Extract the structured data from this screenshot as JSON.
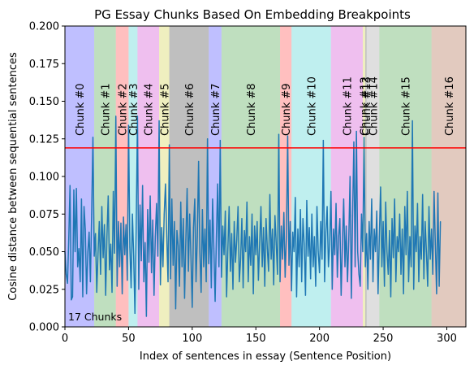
{
  "chart_data": {
    "type": "line",
    "title": "PG Essay Chunks Based On Embedding Breakpoints",
    "xlabel": "Index of sentences in essay (Sentence Position)",
    "ylabel": "Cosine distance between sequential sentences",
    "xlim": [
      0,
      315
    ],
    "ylim": [
      0.0,
      0.2
    ],
    "xticks": [
      "0",
      "50",
      "100",
      "150",
      "200",
      "250",
      "300"
    ],
    "xtick_values": [
      0,
      50,
      100,
      150,
      200,
      250,
      300
    ],
    "yticks": [
      "0.000",
      "0.025",
      "0.050",
      "0.075",
      "0.100",
      "0.125",
      "0.150",
      "0.175",
      "0.200"
    ],
    "ytick_values": [
      0.0,
      0.025,
      0.05,
      0.075,
      0.1,
      0.125,
      0.15,
      0.175,
      0.2
    ],
    "grid": false,
    "threshold": 0.119,
    "threshold_color": "#ff0000",
    "line_color": "#1f77b4",
    "annotation": "17 Chunks",
    "chunks": [
      {
        "label": "Chunk #0",
        "start": 0,
        "end": 23,
        "color": "#0000ff"
      },
      {
        "label": "Chunk #1",
        "start": 23,
        "end": 40,
        "color": "#008000"
      },
      {
        "label": "Chunk #2",
        "start": 40,
        "end": 50,
        "color": "#ff0000"
      },
      {
        "label": "Chunk #3",
        "start": 50,
        "end": 57,
        "color": "#00bfbf"
      },
      {
        "label": "Chunk #4",
        "start": 57,
        "end": 74,
        "color": "#bf00bf"
      },
      {
        "label": "Chunk #5",
        "start": 74,
        "end": 82,
        "color": "#bfbf00"
      },
      {
        "label": "Chunk #6",
        "start": 82,
        "end": 113,
        "color": "#000000"
      },
      {
        "label": "Chunk #7",
        "start": 113,
        "end": 123,
        "color": "#0000ff"
      },
      {
        "label": "Chunk #8",
        "start": 123,
        "end": 169,
        "color": "#008000"
      },
      {
        "label": "Chunk #9",
        "start": 169,
        "end": 178,
        "color": "#ff0000"
      },
      {
        "label": "Chunk #10",
        "start": 178,
        "end": 209,
        "color": "#00bfbf"
      },
      {
        "label": "Chunk #11",
        "start": 209,
        "end": 234,
        "color": "#bf00bf"
      },
      {
        "label": "Chunk #12",
        "start": 234,
        "end": 236,
        "color": "#bfbf00"
      },
      {
        "label": "Chunk #13",
        "start": 236,
        "end": 237,
        "color": "#000000"
      },
      {
        "label": "Chunk #14",
        "start": 237,
        "end": 247,
        "color": "#808080"
      },
      {
        "label": "Chunk #15",
        "start": 247,
        "end": 288,
        "color": "#008000"
      },
      {
        "label": "Chunk #16",
        "start": 288,
        "end": 315,
        "color": "#8b2a00"
      }
    ],
    "series": [
      {
        "values": [
          0.05,
          0.035,
          0.029,
          0.058,
          0.094,
          0.018,
          0.02,
          0.091,
          0.05,
          0.092,
          0.04,
          0.052,
          0.03,
          0.085,
          0.02,
          0.08,
          0.065,
          0.022,
          0.05,
          0.063,
          0.03,
          0.075,
          0.126,
          0.047,
          0.062,
          0.023,
          0.049,
          0.07,
          0.035,
          0.08,
          0.046,
          0.068,
          0.021,
          0.06,
          0.087,
          0.038,
          0.055,
          0.023,
          0.09,
          0.049,
          0.14,
          0.027,
          0.07,
          0.04,
          0.069,
          0.022,
          0.073,
          0.048,
          0.068,
          0.031,
          0.134,
          0.053,
          0.026,
          0.075,
          0.047,
          0.009,
          0.066,
          0.14,
          0.025,
          0.081,
          0.044,
          0.094,
          0.03,
          0.056,
          0.007,
          0.078,
          0.043,
          0.087,
          0.036,
          0.071,
          0.021,
          0.06,
          0.082,
          0.047,
          0.137,
          0.028,
          0.066,
          0.04,
          0.075,
          0.095,
          0.06,
          0.03,
          0.121,
          0.032,
          0.085,
          0.041,
          0.07,
          0.012,
          0.064,
          0.054,
          0.027,
          0.083,
          0.04,
          0.072,
          0.019,
          0.058,
          0.092,
          0.037,
          0.075,
          0.047,
          0.013,
          0.066,
          0.085,
          0.03,
          0.06,
          0.11,
          0.05,
          0.023,
          0.078,
          0.04,
          0.065,
          0.03,
          0.125,
          0.042,
          0.071,
          0.026,
          0.085,
          0.052,
          0.017,
          0.06,
          0.095,
          0.04,
          0.124,
          0.033,
          0.067,
          0.048,
          0.077,
          0.02,
          0.052,
          0.08,
          0.037,
          0.062,
          0.025,
          0.07,
          0.043,
          0.058,
          0.08,
          0.03,
          0.045,
          0.072,
          0.026,
          0.064,
          0.05,
          0.083,
          0.03,
          0.06,
          0.041,
          0.075,
          0.022,
          0.067,
          0.048,
          0.07,
          0.031,
          0.056,
          0.08,
          0.04,
          0.066,
          0.027,
          0.072,
          0.052,
          0.037,
          0.088,
          0.045,
          0.065,
          0.028,
          0.074,
          0.055,
          0.035,
          0.128,
          0.03,
          0.067,
          0.045,
          0.076,
          0.033,
          0.06,
          0.127,
          0.041,
          0.07,
          0.024,
          0.063,
          0.05,
          0.086,
          0.02,
          0.065,
          0.04,
          0.078,
          0.03,
          0.072,
          0.055,
          0.021,
          0.084,
          0.047,
          0.066,
          0.032,
          0.075,
          0.04,
          0.06,
          0.027,
          0.08,
          0.05,
          0.036,
          0.07,
          0.045,
          0.124,
          0.03,
          0.063,
          0.08,
          0.04,
          0.055,
          0.09,
          0.025,
          0.065,
          0.048,
          0.082,
          0.033,
          0.06,
          0.072,
          0.021,
          0.055,
          0.085,
          0.04,
          0.067,
          0.03,
          0.058,
          0.1,
          0.019,
          0.074,
          0.123,
          0.04,
          0.13,
          0.05,
          0.035,
          0.027,
          0.075,
          0.05,
          0.126,
          0.04,
          0.062,
          0.025,
          0.07,
          0.045,
          0.085,
          0.03,
          0.065,
          0.05,
          0.077,
          0.022,
          0.06,
          0.093,
          0.04,
          0.07,
          0.027,
          0.083,
          0.05,
          0.035,
          0.064,
          0.02,
          0.072,
          0.046,
          0.085,
          0.03,
          0.06,
          0.05,
          0.075,
          0.035,
          0.065,
          0.022,
          0.08,
          0.048,
          0.09,
          0.03,
          0.06,
          0.04,
          0.137,
          0.025,
          0.067,
          0.05,
          0.082,
          0.03,
          0.06,
          0.045,
          0.088,
          0.032,
          0.07,
          0.05,
          0.027,
          0.08,
          0.045,
          0.065,
          0.035,
          0.09,
          0.055,
          0.022,
          0.089,
          0.027,
          0.07
        ]
      }
    ]
  }
}
